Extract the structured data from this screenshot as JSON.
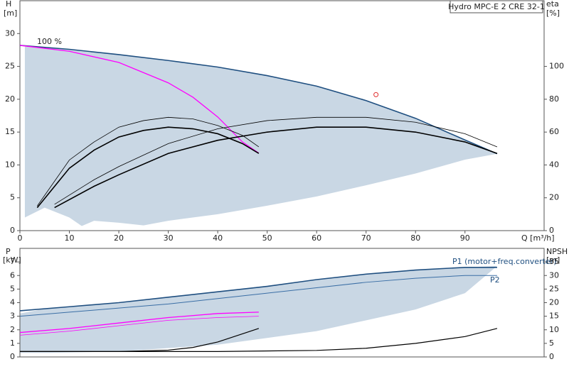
{
  "chart_data": [
    {
      "type": "line",
      "title": "Hydro MPC-E 2 CRE 32-1",
      "y_label": "H",
      "y_unit": "[m]",
      "y2_label": "eta",
      "y2_unit": "[%]",
      "x_label": "Q [m³/h]",
      "annotation": "100 %",
      "xlim": [
        0,
        106
      ],
      "xticks": [
        0,
        10,
        20,
        30,
        40,
        50,
        60,
        70,
        80,
        90
      ],
      "ylim": [
        0,
        35
      ],
      "yticks": [
        0,
        5,
        10,
        15,
        20,
        25,
        30
      ],
      "y2lim": [
        0,
        140
      ],
      "y2ticks": [
        0,
        20,
        40,
        60,
        80,
        100
      ],
      "band": {
        "color": "#c9d7e4",
        "x": [
          1,
          5,
          10,
          12.5,
          15,
          20,
          25,
          30,
          40,
          50,
          60,
          70,
          80,
          90,
          96.5
        ],
        "upper": [
          28.1,
          27.9,
          27.6,
          27.4,
          27.2,
          26.8,
          26.4,
          25.9,
          24.9,
          23.6,
          22.0,
          19.8,
          17.1,
          13.8,
          11.7
        ],
        "lower": [
          2,
          3.5,
          2,
          0.7,
          1.5,
          1.2,
          0.8,
          1.5,
          2.5,
          3.8,
          5.2,
          6.9,
          8.7,
          10.8,
          11.7
        ]
      },
      "series": [
        {
          "color": "#1f4f80",
          "x": [
            0,
            10,
            20,
            30,
            40,
            50,
            60,
            70,
            80,
            90,
            96.5
          ],
          "values": [
            28.2,
            27.6,
            26.8,
            25.9,
            24.9,
            23.6,
            22.0,
            19.8,
            17.1,
            13.8,
            11.7
          ]
        },
        {
          "color": "#ff00ff",
          "x": [
            0,
            10,
            20,
            30,
            35,
            40,
            45,
            48.3
          ],
          "values": [
            28.2,
            27.3,
            25.6,
            22.5,
            20.3,
            17.3,
            13.5,
            11.8
          ]
        },
        {
          "color": "#000000",
          "axis": "y2",
          "x": [
            3.5,
            10,
            15,
            20,
            25,
            30,
            35,
            40,
            45,
            48.3
          ],
          "values": [
            14,
            38,
            49,
            57,
            61,
            63,
            62,
            59,
            53,
            47
          ]
        },
        {
          "color": "#000000",
          "axis": "y2",
          "x": [
            3.5,
            10,
            15,
            20,
            25,
            30,
            35,
            40,
            45,
            48.3
          ],
          "values": [
            15,
            43,
            54,
            63,
            67,
            69,
            68,
            64,
            58,
            51
          ]
        },
        {
          "color": "#000000",
          "axis": "y2",
          "x": [
            7,
            15,
            20,
            30,
            40,
            50,
            60,
            70,
            80,
            90,
            96.5
          ],
          "values": [
            14,
            27,
            34,
            47,
            55,
            60,
            63,
            63,
            60,
            54,
            47
          ]
        },
        {
          "color": "#000000",
          "axis": "y2",
          "x": [
            7,
            15,
            20,
            30,
            40,
            50,
            60,
            70,
            80,
            90,
            96.5
          ],
          "values": [
            16,
            31,
            39,
            53,
            62,
            67,
            69,
            69,
            66,
            59,
            51
          ]
        }
      ],
      "points": {
        "color": "#e03030",
        "x": [
          72
        ],
        "values": [
          20.7
        ]
      }
    },
    {
      "type": "line",
      "y_label": "P",
      "y_unit": "[kW]",
      "y2_label": "NPSH",
      "y2_unit": "[m]",
      "annotations": [
        "P1 (motor+freq.converter)",
        "P2"
      ],
      "xlim": [
        0,
        106
      ],
      "ylim": [
        0,
        8
      ],
      "yticks": [
        0,
        1,
        2,
        3,
        4,
        5,
        6,
        7
      ],
      "y2lim": [
        0,
        40
      ],
      "y2ticks": [
        0,
        5,
        10,
        15,
        20,
        25,
        30,
        35
      ],
      "band": {
        "color": "#c9d7e4",
        "x": [
          0,
          6,
          20,
          40,
          60,
          80,
          90,
          96.5
        ],
        "upper": [
          3.2,
          3.6,
          4.0,
          4.8,
          5.7,
          6.4,
          6.6,
          6.7
        ],
        "lower": [
          0.3,
          0.3,
          0.4,
          0.9,
          1.9,
          3.5,
          4.7,
          6.7
        ]
      },
      "series": [
        {
          "color": "#1f4f80",
          "x": [
            0,
            10,
            20,
            30,
            40,
            50,
            60,
            70,
            80,
            90,
            96.5
          ],
          "values": [
            3.4,
            3.7,
            4.0,
            4.4,
            4.8,
            5.2,
            5.7,
            6.1,
            6.4,
            6.6,
            6.6
          ]
        },
        {
          "color": "#3a6ea5",
          "x": [
            0,
            10,
            20,
            30,
            40,
            50,
            60,
            70,
            80,
            90,
            96.5
          ],
          "values": [
            3.0,
            3.3,
            3.6,
            3.9,
            4.3,
            4.7,
            5.1,
            5.5,
            5.8,
            6.0,
            6.0
          ]
        },
        {
          "color": "#ff00ff",
          "x": [
            0,
            10,
            20,
            30,
            40,
            48.3
          ],
          "values": [
            1.8,
            2.1,
            2.5,
            2.9,
            3.2,
            3.3
          ]
        },
        {
          "color": "#ff00ff",
          "x": [
            0,
            10,
            20,
            30,
            40,
            48.3
          ],
          "values": [
            1.6,
            1.9,
            2.3,
            2.7,
            2.9,
            3.0
          ]
        },
        {
          "color": "#000000",
          "axis": "y2",
          "x": [
            0,
            10,
            20,
            30,
            35,
            40,
            45,
            48.3
          ],
          "values": [
            2,
            2,
            2,
            2.5,
            3.5,
            5.5,
            8.5,
            10.5
          ]
        },
        {
          "color": "#000000",
          "axis": "y2",
          "x": [
            0,
            40,
            60,
            70,
            80,
            90,
            96.5
          ],
          "values": [
            2,
            2,
            2.4,
            3.2,
            5,
            7.5,
            10.5
          ]
        }
      ]
    }
  ]
}
